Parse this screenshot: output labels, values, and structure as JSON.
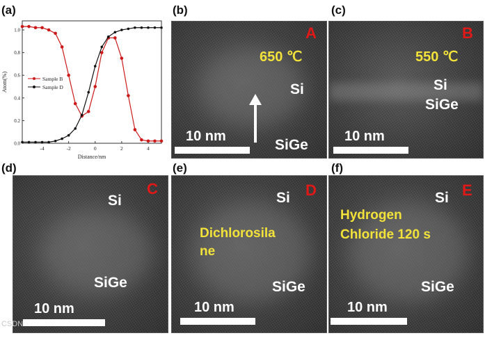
{
  "panels": {
    "a": {
      "label": "(a)",
      "chart_data": {
        "type": "line",
        "ylabel": "Atom(%)",
        "xlabel": "Distance/nm",
        "xlim": [
          -5.5,
          5
        ],
        "ylim": [
          0,
          1.08
        ],
        "xticks": [
          -4,
          -2,
          0,
          2,
          4
        ],
        "xtick_labels": [
          "-4",
          "-2",
          "0",
          "2",
          "4"
        ],
        "yticks": [
          0,
          0.2,
          0.4,
          0.6,
          0.8,
          1.0
        ],
        "ytick_labels": [
          "0.0",
          "0.2",
          "0.4",
          "0.6",
          "0.8",
          "1.0"
        ],
        "legend_position": "center-left",
        "series": [
          {
            "name": "Sample B",
            "color": "#cc1a1a",
            "x": [
              -5.5,
              -5,
              -4.5,
              -4,
              -3.5,
              -3,
              -2.5,
              -2,
              -1.5,
              -1,
              -0.5,
              0,
              0.5,
              1,
              1.5,
              2,
              2.5,
              3,
              3.5,
              4,
              4.5,
              5
            ],
            "y": [
              1.03,
              1.03,
              1.02,
              1.02,
              1.0,
              0.97,
              0.85,
              0.6,
              0.35,
              0.24,
              0.28,
              0.5,
              0.8,
              0.93,
              0.93,
              0.75,
              0.42,
              0.12,
              0.03,
              0.02,
              0.02,
              0.02
            ]
          },
          {
            "name": "Sample D",
            "color": "#111111",
            "x": [
              -5.5,
              -5,
              -4.5,
              -4,
              -3.5,
              -3,
              -2.5,
              -2,
              -1.5,
              -1,
              -0.5,
              0,
              0.5,
              1,
              1.5,
              2,
              2.5,
              3,
              3.5,
              4,
              4.5,
              5
            ],
            "y": [
              0.01,
              0.01,
              0.01,
              0.01,
              0.01,
              0.02,
              0.04,
              0.07,
              0.13,
              0.25,
              0.45,
              0.68,
              0.85,
              0.94,
              0.98,
              1.0,
              1.01,
              1.02,
              1.02,
              1.02,
              1.02,
              1.02
            ]
          }
        ]
      }
    },
    "b": {
      "label": "(b)",
      "corner_letter": "A",
      "temp": "650 ℃",
      "top_layer": "Si",
      "bottom_layer": "SiGe",
      "scale": "10 nm"
    },
    "c": {
      "label": "(c)",
      "corner_letter": "B",
      "temp": "550 ℃",
      "top_layer": "Si",
      "bottom_layer": "SiGe",
      "scale": "10 nm"
    },
    "d": {
      "label": "(d)",
      "corner_letter": "C",
      "top_layer": "Si",
      "bottom_layer": "SiGe",
      "scale": "10 nm"
    },
    "e": {
      "label": "(e)",
      "corner_letter": "D",
      "annotation_line1": "Dichlorosila",
      "annotation_line2": "ne",
      "top_layer": "Si",
      "bottom_layer": "SiGe",
      "scale": "10 nm"
    },
    "f": {
      "label": "(f)",
      "corner_letter": "E",
      "annotation_line1": "Hydrogen",
      "annotation_line2": "Chloride 120 s",
      "top_layer": "Si",
      "bottom_layer": "SiGe",
      "scale": "10 nm"
    }
  },
  "watermark": "CSDN"
}
